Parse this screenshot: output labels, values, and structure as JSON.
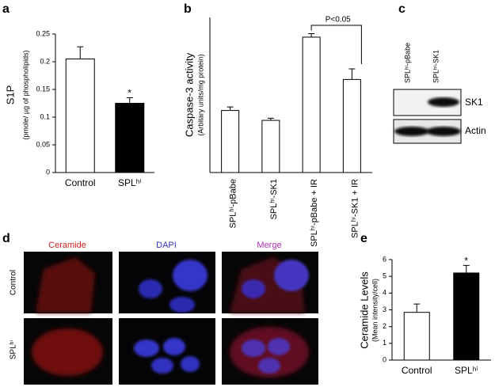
{
  "panel_labels": [
    "a",
    "b",
    "c",
    "d",
    "e"
  ],
  "chart_data": [
    {
      "type": "bar",
      "y_label": "S1P",
      "y_sublabel": "(pmole/ µg of phospholipids)",
      "categories": [
        "Control",
        "SPLʰⁱ"
      ],
      "values": [
        0.205,
        0.125
      ],
      "errors": [
        0.022,
        0.01
      ],
      "colors": [
        "#ffffff",
        "#000000"
      ],
      "ylim": [
        0,
        0.25
      ],
      "yticks": [
        0,
        0.05,
        0.1,
        0.15,
        0.2,
        0.25
      ],
      "annotation": "*"
    },
    {
      "type": "bar",
      "y_label": "Caspase-3 activity",
      "y_sublabel": "(Arbitary units/mg protein)",
      "categories": [
        "SPLʰⁱ-pBabe",
        "SPLʰⁱ-SK1",
        "SPLʰⁱ-pBabe + IR",
        "SPLʰⁱ-SK1 + IR"
      ],
      "values": [
        8.8,
        7.4,
        19.2,
        13.2
      ],
      "errors": [
        0.5,
        0.3,
        0.5,
        1.5
      ],
      "colors": [
        "#ffffff",
        "#ffffff",
        "#ffffff",
        "#ffffff"
      ],
      "ylim": [
        0,
        22
      ],
      "annotation": "P<0.05"
    },
    {
      "type": "bar",
      "y_label": "Ceramide Levels",
      "y_sublabel": "(Mean intensity/cell)",
      "categories": [
        "Control",
        "SPLʰⁱ"
      ],
      "values": [
        2.85,
        5.2
      ],
      "errors": [
        0.5,
        0.45
      ],
      "colors": [
        "#ffffff",
        "#000000"
      ],
      "ylim": [
        0,
        6
      ],
      "yticks": [
        0,
        1,
        2,
        3,
        4,
        5,
        6
      ],
      "annotation": "*"
    }
  ],
  "blot": {
    "lanes": [
      "SPLʰⁱ-pBabe",
      "SPLʰⁱ-SK1"
    ],
    "bands": [
      "SK1",
      "Actin"
    ]
  },
  "microscopy": {
    "columns": [
      "Ceramide",
      "DAPI",
      "Merge"
    ],
    "rows": [
      "Control",
      "SPLʰⁱ"
    ]
  }
}
